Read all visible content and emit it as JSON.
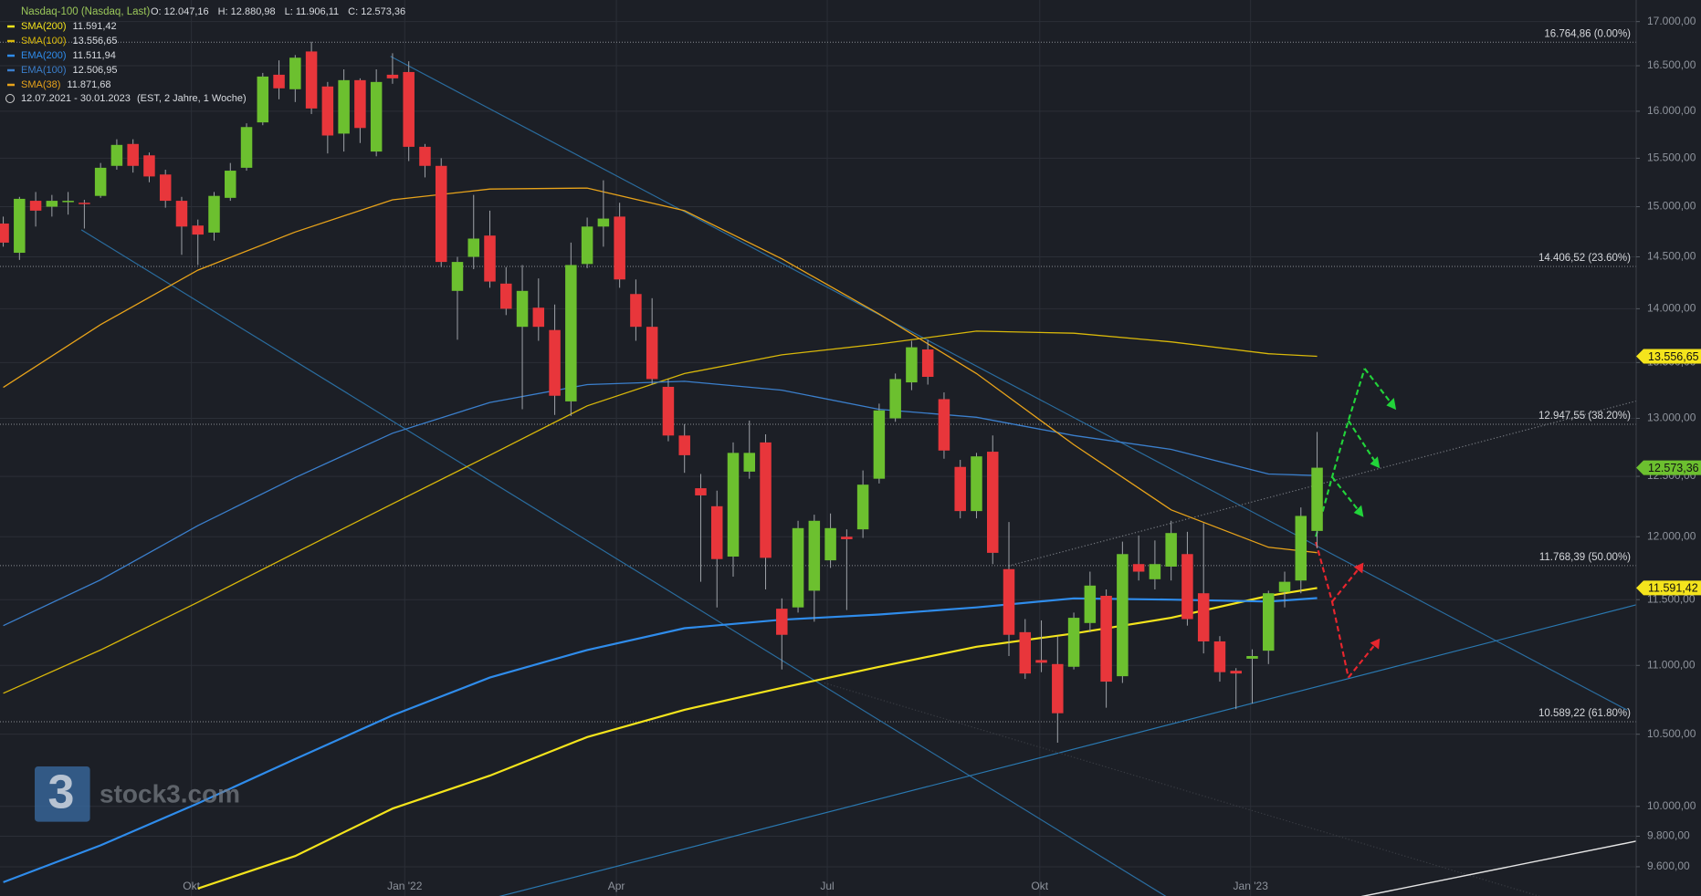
{
  "chart_data": {
    "type": "candlestick",
    "header": "Nasdaq-100 (Nasdaq, Last)",
    "header_ohlc": [
      "O: 12.047,16",
      "H: 12.880,98",
      "L: 11.906,11",
      "C: 12.573,36"
    ],
    "date_range": "12.07.2021 - 30.01.2023",
    "range_info": "(EST, 2 Jahre, 1 Woche)",
    "watermark": {
      "logo": "3",
      "text": "stock3.com"
    },
    "categories": [
      null,
      null,
      null,
      null,
      null,
      null,
      null,
      null,
      null,
      null,
      null,
      null,
      null,
      null,
      null,
      null,
      null,
      null,
      null,
      null,
      null,
      null,
      null,
      null,
      null,
      null,
      null,
      null,
      null,
      null,
      null,
      null,
      null,
      null,
      null,
      null,
      null,
      null,
      null,
      null,
      null,
      null,
      null,
      null,
      null,
      null,
      null,
      null,
      null,
      null,
      null,
      null,
      null,
      null,
      null,
      null,
      null,
      null,
      null,
      null,
      null,
      null,
      null,
      null,
      null,
      null,
      null,
      null,
      null,
      null,
      null,
      null,
      null,
      null,
      null,
      null,
      null,
      null,
      null,
      null,
      null,
      null
    ],
    "candles": {
      "up_color": "#6cc02f",
      "down_color": "#e8363b",
      "open": [
        14830,
        14540,
        15060,
        15000,
        15050,
        15040,
        15110,
        15420,
        15650,
        15530,
        15330,
        15060,
        14810,
        14740,
        15090,
        15400,
        15880,
        16400,
        16240,
        16660,
        16270,
        15760,
        16340,
        15570,
        16400,
        16430,
        15620,
        15420,
        14170,
        14500,
        14710,
        14240,
        13830,
        14010,
        13800,
        13150,
        14430,
        14800,
        14900,
        14140,
        13830,
        13280,
        12850,
        12400,
        12250,
        11840,
        12540,
        12790,
        11430,
        11440,
        11570,
        11810,
        12000,
        12060,
        12480,
        13000,
        13320,
        13620,
        13170,
        12580,
        12210,
        12710,
        11740,
        11250,
        11040,
        11010,
        10990,
        11320,
        11530,
        10920,
        11780,
        11660,
        11760,
        11860,
        11550,
        11180,
        10960,
        11050,
        11110,
        11560,
        11650,
        12047.16
      ],
      "high": [
        14900,
        15100,
        15150,
        15120,
        15150,
        15070,
        15450,
        15700,
        15700,
        15560,
        15380,
        15100,
        14870,
        15150,
        15450,
        15870,
        16420,
        16560,
        16620,
        16770,
        16320,
        16460,
        16360,
        16460,
        16640,
        16550,
        15650,
        15500,
        14500,
        15120,
        14960,
        14400,
        14420,
        14290,
        14040,
        14640,
        14890,
        15270,
        15040,
        14280,
        14100,
        13350,
        12950,
        12520,
        12380,
        12790,
        12980,
        12860,
        11510,
        12130,
        12180,
        12190,
        12060,
        12550,
        13130,
        13400,
        13700,
        13710,
        13230,
        12640,
        12700,
        12850,
        12120,
        11350,
        11340,
        11220,
        11400,
        11720,
        11580,
        11960,
        12010,
        11970,
        12130,
        12040,
        12110,
        11220,
        10980,
        11120,
        11570,
        11720,
        12240,
        12880.98
      ],
      "low": [
        14600,
        14470,
        14800,
        14900,
        14920,
        14780,
        15090,
        15380,
        15350,
        15250,
        14990,
        14520,
        14420,
        14660,
        15060,
        15370,
        15850,
        16130,
        16100,
        15970,
        15550,
        15570,
        15660,
        15520,
        16300,
        15470,
        15300,
        14400,
        13710,
        14380,
        14200,
        13940,
        13080,
        13700,
        13030,
        13020,
        14390,
        14600,
        14200,
        13700,
        13300,
        12800,
        12530,
        11640,
        11440,
        11680,
        12480,
        11580,
        10970,
        11400,
        11330,
        11750,
        11420,
        11990,
        12440,
        12970,
        13250,
        13300,
        12650,
        12150,
        12150,
        11780,
        11070,
        10900,
        10950,
        10440,
        10970,
        11250,
        10690,
        10870,
        11650,
        11580,
        11650,
        11300,
        11090,
        10880,
        10680,
        10720,
        11010,
        11440,
        11550,
        11906.11
      ],
      "close": [
        14640,
        15080,
        14960,
        15060,
        15060,
        15030,
        15400,
        15640,
        15420,
        15310,
        15060,
        14800,
        14720,
        15110,
        15370,
        15830,
        16380,
        16250,
        16590,
        16030,
        15740,
        16340,
        15820,
        16320,
        16360,
        15620,
        15420,
        14450,
        14450,
        14680,
        14260,
        14000,
        14170,
        13830,
        13200,
        14420,
        14800,
        14880,
        14280,
        13830,
        13350,
        12850,
        12680,
        12340,
        11820,
        12700,
        12700,
        11830,
        11230,
        12070,
        12130,
        12070,
        11980,
        12430,
        13070,
        13350,
        13640,
        13370,
        12720,
        12210,
        12670,
        11870,
        11230,
        10940,
        11020,
        10650,
        11360,
        11610,
        10880,
        11860,
        11720,
        11780,
        12030,
        11350,
        11180,
        10950,
        10940,
        11070,
        11550,
        11640,
        12170,
        12573.36
      ]
    },
    "series": [
      {
        "name": "SMA(200)",
        "color": "#f4e41c",
        "last_label": "11.591,42",
        "x": [
          12,
          18,
          24,
          30,
          36,
          42,
          48,
          54,
          60,
          66,
          72,
          78,
          81
        ],
        "values": [
          9460,
          9670,
          9985,
          10210,
          10480,
          10675,
          10835,
          10990,
          11140,
          11240,
          11360,
          11530,
          11591.42
        ]
      },
      {
        "name": "SMA(100)",
        "color": "#d9b80a",
        "last_label": "13.556,65",
        "x": [
          0,
          6,
          12,
          18,
          24,
          30,
          36,
          42,
          48,
          54,
          60,
          66,
          72,
          78,
          81
        ],
        "values": [
          10795,
          11115,
          11480,
          11870,
          12270,
          12680,
          13110,
          13400,
          13570,
          13670,
          13790,
          13770,
          13690,
          13580,
          13556.65
        ]
      },
      {
        "name": "EMA(200)",
        "color": "#2f8ceb",
        "last_label": "11.511,94",
        "x": [
          0,
          6,
          12,
          18,
          24,
          30,
          36,
          42,
          48,
          54,
          60,
          66,
          72,
          78,
          81
        ],
        "values": [
          9500,
          9740,
          10020,
          10325,
          10635,
          10910,
          11115,
          11280,
          11345,
          11385,
          11440,
          11510,
          11500,
          11485,
          11511.94
        ]
      },
      {
        "name": "EMA(100)",
        "color": "#3b7fcc",
        "last_label": "12.506,95",
        "x": [
          0,
          6,
          12,
          18,
          24,
          30,
          36,
          42,
          48,
          54,
          60,
          66,
          72,
          78,
          81
        ],
        "values": [
          11300,
          11655,
          12090,
          12490,
          12870,
          13140,
          13300,
          13330,
          13250,
          13080,
          13010,
          12850,
          12730,
          12520,
          12506.95
        ]
      },
      {
        "name": "SMA(38)",
        "color": "#e8a31a",
        "last_label": "11.871,68",
        "x": [
          0,
          6,
          12,
          18,
          24,
          30,
          36,
          42,
          48,
          54,
          60,
          66,
          72,
          78,
          81
        ],
        "values": [
          13275,
          13850,
          14370,
          14745,
          15070,
          15180,
          15190,
          14960,
          14480,
          13950,
          13400,
          12770,
          12220,
          11915,
          11871.68
        ]
      }
    ],
    "fib_levels": [
      {
        "value": 16764.86,
        "label": "16.764,86 (0.00%)"
      },
      {
        "value": 14406.52,
        "label": "14.406,52 (23.60%)"
      },
      {
        "value": 12947.55,
        "label": "12.947,55 (38.20%)"
      },
      {
        "value": 11768.39,
        "label": "11.768,39 (50.00%)"
      },
      {
        "value": 10589.22,
        "label": "10.589,22 (61.80%)"
      }
    ],
    "price_tags": [
      {
        "value": 13556.65,
        "label": "13.556,65",
        "color": "#f4e41c"
      },
      {
        "value": 12573.36,
        "label": "12.573,36",
        "color": "#6cc02f"
      },
      {
        "value": 11591.42,
        "label": "11.591,42",
        "color": "#f4e41c"
      }
    ],
    "log_scale": true,
    "grid": true,
    "legend": "upper left",
    "xlim": [
      -0.2,
      100.67
    ],
    "xticks": [
      {
        "value": 11.6,
        "label": "Okt"
      },
      {
        "value": 24.75,
        "label": "Jan '22"
      },
      {
        "value": 37.8,
        "label": "Apr"
      },
      {
        "value": 50.8,
        "label": "Jul"
      },
      {
        "value": 63.9,
        "label": "Okt"
      },
      {
        "value": 76.9,
        "label": "Jan '23"
      }
    ],
    "ylim": [
      9412,
      17250
    ],
    "yticks": [
      {
        "value": 9600,
        "label": "9.600,00"
      },
      {
        "value": 9800,
        "label": "9.800,00"
      },
      {
        "value": 10000,
        "label": "10.000,00"
      },
      {
        "value": 10500,
        "label": "10.500,00"
      },
      {
        "value": 11000,
        "label": "11.000,00"
      },
      {
        "value": 11500,
        "label": "11.500,00"
      },
      {
        "value": 12000,
        "label": "12.000,00"
      },
      {
        "value": 12500,
        "label": "12.500,00"
      },
      {
        "value": 13000,
        "label": "13.000,00"
      },
      {
        "value": 13500,
        "label": "13.500,00"
      },
      {
        "value": 14000,
        "label": "14.000,00"
      },
      {
        "value": 14500,
        "label": "14.500,00"
      },
      {
        "value": 15000,
        "label": "15.000,00"
      },
      {
        "value": 15500,
        "label": "15.500,00"
      },
      {
        "value": 16000,
        "label": "16.000,00"
      },
      {
        "value": 16500,
        "label": "16.500,00"
      },
      {
        "value": 17000,
        "label": "17.000,00"
      }
    ]
  }
}
